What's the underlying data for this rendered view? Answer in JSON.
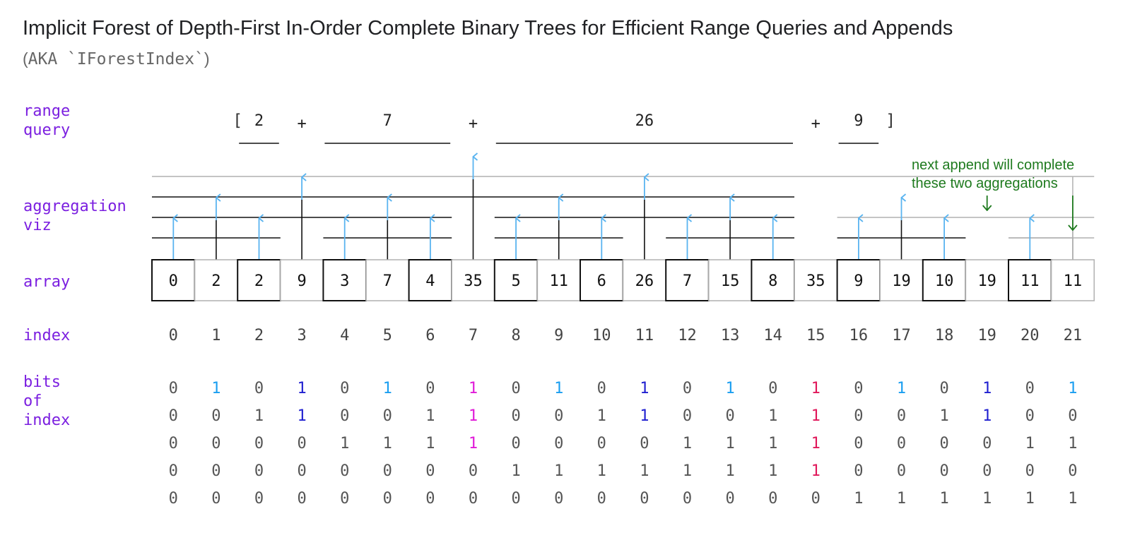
{
  "title": "Implicit Forest of Depth-First In-Order Complete Binary Trees for Efficient Range Queries and Appends",
  "subtitle": {
    "open": "(",
    "text": "AKA `IForestIndex`",
    "close": ")"
  },
  "row_labels": {
    "range_query": [
      "range",
      "query"
    ],
    "aggregation_viz": [
      "aggregation",
      "viz"
    ],
    "array": [
      "array"
    ],
    "index": [
      "index"
    ],
    "bits": [
      "bits",
      "of",
      "index"
    ]
  },
  "range_query": {
    "open_bracket": "[",
    "close_bracket": "]",
    "terms": [
      {
        "value": "2",
        "from": 2,
        "to": 2
      },
      {
        "value": "7",
        "from": 4,
        "to": 6
      },
      {
        "value": "26",
        "from": 8,
        "to": 14
      },
      {
        "value": "9",
        "from": 16,
        "to": 16
      }
    ],
    "operator": "+"
  },
  "array": {
    "values": [
      "0",
      "2",
      "2",
      "9",
      "3",
      "7",
      "4",
      "35",
      "5",
      "11",
      "6",
      "26",
      "7",
      "15",
      "8",
      "35",
      "9",
      "19",
      "10",
      "19",
      "11",
      "11"
    ]
  },
  "index": {
    "values": [
      "0",
      "1",
      "2",
      "3",
      "4",
      "5",
      "6",
      "7",
      "8",
      "9",
      "10",
      "11",
      "12",
      "13",
      "14",
      "15",
      "16",
      "17",
      "18",
      "19",
      "20",
      "21"
    ]
  },
  "bits": {
    "rows": [
      [
        "0",
        "1",
        "0",
        "1",
        "0",
        "1",
        "0",
        "1",
        "0",
        "1",
        "0",
        "1",
        "0",
        "1",
        "0",
        "1",
        "0",
        "1",
        "0",
        "1",
        "0",
        "1"
      ],
      [
        "0",
        "0",
        "1",
        "1",
        "0",
        "0",
        "1",
        "1",
        "0",
        "0",
        "1",
        "1",
        "0",
        "0",
        "1",
        "1",
        "0",
        "0",
        "1",
        "1",
        "0",
        "0"
      ],
      [
        "0",
        "0",
        "0",
        "0",
        "1",
        "1",
        "1",
        "1",
        "0",
        "0",
        "0",
        "0",
        "1",
        "1",
        "1",
        "1",
        "0",
        "0",
        "0",
        "0",
        "1",
        "1"
      ],
      [
        "0",
        "0",
        "0",
        "0",
        "0",
        "0",
        "0",
        "0",
        "1",
        "1",
        "1",
        "1",
        "1",
        "1",
        "1",
        "1",
        "0",
        "0",
        "0",
        "0",
        "0",
        "0"
      ],
      [
        "0",
        "0",
        "0",
        "0",
        "0",
        "0",
        "0",
        "0",
        "0",
        "0",
        "0",
        "0",
        "0",
        "0",
        "0",
        "0",
        "1",
        "1",
        "1",
        "1",
        "1",
        "1"
      ]
    ]
  },
  "annotation": {
    "lines": [
      "next append will complete",
      "these two aggregations"
    ]
  },
  "colors": {
    "label": "#7b1fe0",
    "text": "#444444",
    "cell_text": "#111111",
    "bit_zero": "#555555",
    "level1": "#1a9ef0",
    "level2": "#1f1fd0",
    "level3": "#e01ad8",
    "level4": "#e0175a",
    "arrow": "#5ab4f0",
    "black_line": "#111111",
    "gray_line": "#b0b0b0",
    "annotation": "#1e7a1e"
  }
}
